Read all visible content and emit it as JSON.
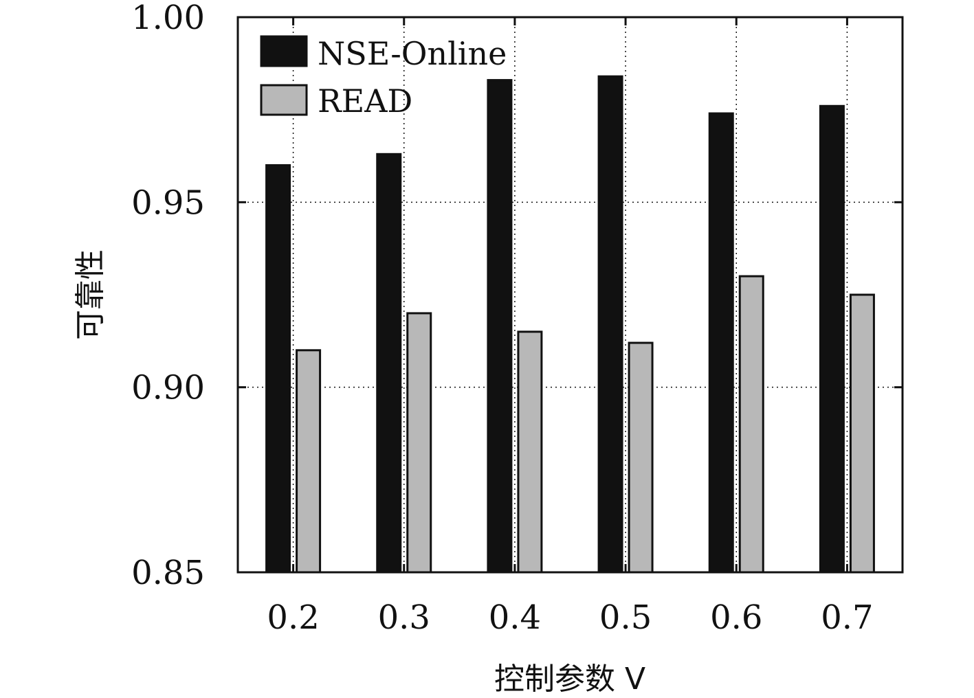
{
  "chart_data": {
    "type": "bar",
    "categories": [
      "0.2",
      "0.3",
      "0.4",
      "0.5",
      "0.6",
      "0.7"
    ],
    "series": [
      {
        "name": "NSE-Online",
        "values": [
          0.96,
          0.963,
          0.983,
          0.984,
          0.974,
          0.976
        ],
        "color": "#111111"
      },
      {
        "name": "READ",
        "values": [
          0.91,
          0.92,
          0.915,
          0.912,
          0.93,
          0.925
        ],
        "color": "#b8b8b8"
      }
    ],
    "xlabel": "控制参数 V",
    "ylabel": "可靠性",
    "ylim": [
      0.85,
      1.0
    ],
    "yticks": [
      "0.85",
      "0.90",
      "0.95",
      "1.00"
    ],
    "grid": true,
    "legend_position": "top-left"
  }
}
